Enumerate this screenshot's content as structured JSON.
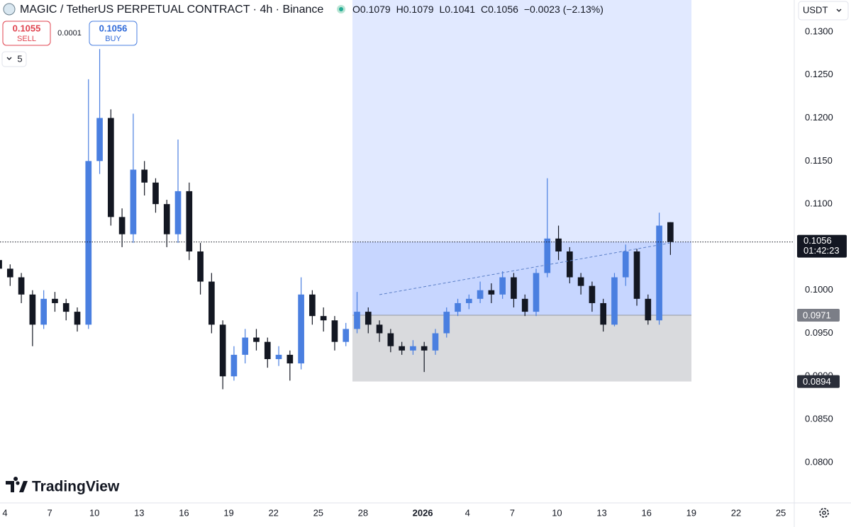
{
  "header": {
    "symbol": "MAGIC / TetherUS PERPETUAL CONTRACT · 4h · Binance",
    "ohlc": [
      {
        "label": "O",
        "value": "0.1079"
      },
      {
        "label": "H",
        "value": "0.1079"
      },
      {
        "label": "L",
        "value": "0.1041"
      },
      {
        "label": "C",
        "value": "0.1056"
      }
    ],
    "change": "−0.0023 (−2.13%)"
  },
  "trade": {
    "sell_price": "0.1055",
    "sell_label": "SELL",
    "spread": "0.0001",
    "buy_price": "0.1056",
    "buy_label": "BUY"
  },
  "indicator_toggle": "5",
  "currency": "USDT",
  "brand": "TradingView",
  "chart_data": {
    "type": "candlestick",
    "x": [
      3.6,
      4.35,
      5.1,
      5.85,
      6.6,
      7.35,
      8.1,
      8.85,
      9.6,
      10.35,
      11.1,
      11.85,
      12.6,
      13.35,
      14.1,
      14.85,
      15.6,
      16.35,
      17.1,
      17.85,
      18.6,
      19.35,
      20.1,
      20.85,
      21.6,
      22.35,
      23.1,
      23.85,
      24.6,
      25.35,
      26.1,
      26.85,
      27.6,
      28.35,
      29.1,
      29.85,
      30.6,
      31.35,
      32.1,
      32.85,
      33.6,
      34.35,
      35.1,
      35.85,
      36.6,
      37.35,
      38.1,
      38.85,
      39.6,
      40.35,
      41.1,
      41.85,
      42.6,
      43.35,
      44.1,
      44.85,
      45.6,
      46.35,
      47.1,
      47.85,
      48.6
    ],
    "open": [
      0.1035,
      0.1025,
      0.1015,
      0.0995,
      0.096,
      0.099,
      0.0985,
      0.0975,
      0.096,
      0.115,
      0.12,
      0.1085,
      0.1065,
      0.114,
      0.1125,
      0.11,
      0.1065,
      0.1115,
      0.1045,
      0.101,
      0.096,
      0.09,
      0.0925,
      0.0945,
      0.094,
      0.092,
      0.0925,
      0.0915,
      0.0995,
      0.097,
      0.0965,
      0.094,
      0.0955,
      0.0975,
      0.096,
      0.095,
      0.0935,
      0.093,
      0.0935,
      0.093,
      0.095,
      0.0975,
      0.0985,
      0.099,
      0.1,
      0.0995,
      0.1015,
      0.099,
      0.0975,
      0.102,
      0.106,
      0.1045,
      0.1015,
      0.1005,
      0.0985,
      0.096,
      0.1015,
      0.1045,
      0.099,
      0.0965,
      0.1079
    ],
    "high": [
      0.1045,
      0.103,
      0.102,
      0.1,
      0.1,
      0.0998,
      0.099,
      0.098,
      0.1245,
      0.128,
      0.121,
      0.1095,
      0.1205,
      0.115,
      0.113,
      0.1105,
      0.1175,
      0.1125,
      0.1055,
      0.102,
      0.0965,
      0.0935,
      0.0955,
      0.0955,
      0.0945,
      0.0935,
      0.093,
      0.1015,
      0.1,
      0.098,
      0.097,
      0.0962,
      0.0998,
      0.098,
      0.0965,
      0.0955,
      0.094,
      0.0942,
      0.094,
      0.0955,
      0.098,
      0.099,
      0.0995,
      0.101,
      0.1008,
      0.1022,
      0.102,
      0.0995,
      0.1025,
      0.113,
      0.1075,
      0.105,
      0.102,
      0.101,
      0.099,
      0.102,
      0.1053,
      0.1048,
      0.0995,
      0.109,
      0.1079
    ],
    "low": [
      0.1015,
      0.1005,
      0.0985,
      0.0935,
      0.0955,
      0.0975,
      0.0965,
      0.0952,
      0.0955,
      0.1135,
      0.1075,
      0.105,
      0.1055,
      0.111,
      0.109,
      0.105,
      0.1055,
      0.1035,
      0.0995,
      0.095,
      0.0885,
      0.0895,
      0.0915,
      0.093,
      0.091,
      0.0912,
      0.0895,
      0.0908,
      0.096,
      0.0952,
      0.093,
      0.0935,
      0.095,
      0.095,
      0.094,
      0.0928,
      0.0925,
      0.0925,
      0.0905,
      0.0925,
      0.0945,
      0.097,
      0.0978,
      0.0985,
      0.0985,
      0.099,
      0.098,
      0.097,
      0.097,
      0.1015,
      0.1035,
      0.1008,
      0.0995,
      0.0975,
      0.0952,
      0.0958,
      0.1005,
      0.0982,
      0.096,
      0.096,
      0.1041
    ],
    "close": [
      0.1025,
      0.1015,
      0.0995,
      0.096,
      0.099,
      0.0985,
      0.0975,
      0.096,
      0.115,
      0.12,
      0.1085,
      0.1065,
      0.114,
      0.1125,
      0.11,
      0.1065,
      0.1115,
      0.1045,
      0.101,
      0.096,
      0.09,
      0.0925,
      0.0945,
      0.094,
      0.092,
      0.0925,
      0.0915,
      0.0995,
      0.097,
      0.0965,
      0.094,
      0.0955,
      0.0975,
      0.096,
      0.095,
      0.0935,
      0.093,
      0.0935,
      0.093,
      0.095,
      0.0975,
      0.0985,
      0.099,
      0.1,
      0.0995,
      0.1015,
      0.099,
      0.0975,
      0.102,
      0.106,
      0.1045,
      0.1015,
      0.1005,
      0.0985,
      0.096,
      0.1015,
      0.1045,
      0.099,
      0.0965,
      0.1075,
      0.1056
    ],
    "up_color": "#4a7fe0",
    "down_color": "#131722",
    "xlim": [
      3.67,
      56.9
    ],
    "xticks": [
      4,
      7,
      10,
      13,
      16,
      19,
      22,
      25,
      28,
      {
        "value": 32,
        "label": "2026"
      },
      {
        "value": 35,
        "label": "4"
      },
      {
        "value": 38,
        "label": "7"
      },
      {
        "value": 41,
        "label": "10"
      },
      {
        "value": 44,
        "label": "13"
      },
      {
        "value": 47,
        "label": "16"
      },
      {
        "value": 50,
        "label": "19"
      },
      {
        "value": 53,
        "label": "22"
      },
      {
        "value": 56,
        "label": "25"
      }
    ],
    "ylim": [
      0.0753,
      0.1337
    ],
    "yticks": [
      {
        "value": 0.08,
        "label": "0.0800"
      },
      {
        "value": 0.085,
        "label": "0.0850"
      },
      {
        "value": 0.09,
        "label": "0.0900"
      },
      {
        "value": 0.095,
        "label": "0.0950"
      },
      {
        "value": 0.1,
        "label": "0.1000"
      },
      {
        "value": 0.105,
        "label": "0.1050"
      },
      {
        "value": 0.11,
        "label": "0.1100"
      },
      {
        "value": 0.115,
        "label": "0.1150"
      },
      {
        "value": 0.12,
        "label": "0.1200"
      },
      {
        "value": 0.125,
        "label": "0.1250"
      },
      {
        "value": 0.13,
        "label": "0.1300"
      }
    ],
    "grid": false,
    "last_price": 0.1056,
    "countdown": "01:42:23",
    "position": {
      "entry": 0.0971,
      "stop": 0.0894
    }
  }
}
